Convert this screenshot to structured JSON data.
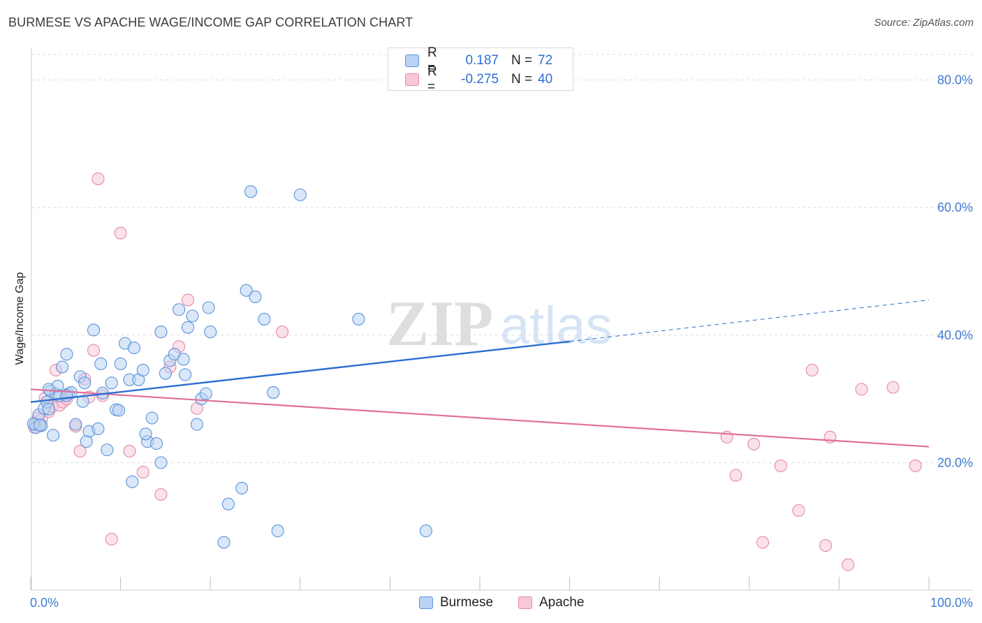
{
  "title": "BURMESE VS APACHE WAGE/INCOME GAP CORRELATION CHART",
  "source": "Source: ZipAtlas.com",
  "watermark": {
    "zip": "ZIP",
    "atlas": "atlas"
  },
  "colors": {
    "burmese_fill": "#b9d3f3",
    "burmese_stroke": "#5b93d8",
    "burmese_line": "#2a6fd0",
    "apache_fill": "#f8c8d8",
    "apache_stroke": "#e58aa9",
    "apache_line": "#e0709a",
    "tick_label": "#3f7bd3",
    "grid": "#dddddd"
  },
  "legend": {
    "rows": [
      {
        "r_label": "R =",
        "r_value": "0.187",
        "n_label": "N =",
        "n_value": "72"
      },
      {
        "r_label": "R =",
        "r_value": "-0.275",
        "n_label": "N =",
        "n_value": "40"
      }
    ]
  },
  "bottom_legend": {
    "burmese": "Burmese",
    "apache": "Apache"
  },
  "chart_data": {
    "type": "scatter",
    "title": "BURMESE VS APACHE WAGE/INCOME GAP CORRELATION CHART",
    "xlabel": "",
    "ylabel": "Wage/Income Gap",
    "xlim": [
      0,
      100
    ],
    "ylim": [
      0,
      84
    ],
    "x_tick_labels": [
      "0.0%",
      "100.0%"
    ],
    "y_ticks": [
      20,
      40,
      60,
      80
    ],
    "y_tick_labels": [
      "20.0%",
      "40.0%",
      "60.0%",
      "80.0%"
    ],
    "grid": "horizontal dashed",
    "legend_position": "top-center",
    "series": [
      {
        "name": "Burmese",
        "x": [
          0.5,
          0.6,
          0.9,
          1.2,
          1.5,
          1.8,
          2.0,
          2.2,
          2.5,
          2.8,
          3.0,
          3.2,
          3.5,
          4.0,
          4.2,
          4.5,
          5.0,
          5.5,
          5.8,
          6.0,
          6.5,
          7.0,
          7.5,
          8.0,
          8.5,
          9.0,
          9.5,
          10.0,
          10.5,
          11.0,
          11.5,
          12.0,
          12.5,
          13.0,
          13.5,
          14.0,
          14.5,
          15.0,
          15.5,
          16.0,
          16.5,
          17.0,
          17.5,
          18.0,
          18.5,
          19.0,
          19.5,
          20.0,
          21.5,
          22.0,
          23.5,
          24.0,
          25.0,
          26.0,
          27.5,
          30.0,
          0.3,
          1.0,
          2.0,
          4.0,
          6.2,
          7.8,
          9.8,
          11.3,
          12.8,
          14.5,
          17.2,
          19.8,
          24.5,
          27.0,
          36.5,
          44.0
        ],
        "y": [
          26.0,
          25.5,
          27.5,
          25.8,
          28.5,
          29.5,
          28.4,
          31.2,
          24.3,
          30.8,
          32.0,
          30.5,
          35.0,
          37.0,
          30.8,
          31.0,
          26.0,
          33.5,
          29.6,
          32.5,
          24.9,
          40.8,
          25.3,
          30.9,
          22.0,
          32.5,
          28.3,
          35.5,
          38.7,
          33.0,
          38.0,
          33.0,
          34.5,
          23.3,
          27.0,
          23.0,
          40.5,
          34.0,
          36.0,
          37.0,
          44.0,
          36.2,
          41.2,
          43.0,
          26.0,
          30.0,
          30.8,
          40.5,
          7.5,
          13.5,
          16.0,
          47.0,
          46.0,
          42.5,
          9.3,
          62.0,
          26.1,
          25.9,
          31.5,
          30.5,
          23.3,
          35.5,
          28.2,
          17.0,
          24.5,
          20.0,
          33.8,
          44.3,
          62.5,
          31.0,
          42.5,
          9.3
        ]
      },
      {
        "name": "Apache",
        "x": [
          0.4,
          0.8,
          1.2,
          1.6,
          2.0,
          2.4,
          2.8,
          3.2,
          3.6,
          4.0,
          5.0,
          5.5,
          6.0,
          6.5,
          7.0,
          7.5,
          8.0,
          9.0,
          10.0,
          11.0,
          12.5,
          14.5,
          15.5,
          16.5,
          17.5,
          18.5,
          28.0,
          77.5,
          78.5,
          80.5,
          81.5,
          83.5,
          85.5,
          87.0,
          88.5,
          89.0,
          91.0,
          92.5,
          96.0,
          98.5
        ],
        "y": [
          25.5,
          27.0,
          26.8,
          30.1,
          28.0,
          28.8,
          34.5,
          29.0,
          29.5,
          30.0,
          25.7,
          21.8,
          33.1,
          30.3,
          37.6,
          64.5,
          30.5,
          8.0,
          56.0,
          21.8,
          18.5,
          15.0,
          35.0,
          38.2,
          45.5,
          28.5,
          40.5,
          24.0,
          18.0,
          22.9,
          7.5,
          19.5,
          12.5,
          34.5,
          7.0,
          24.0,
          4.0,
          31.5,
          31.8,
          19.5
        ]
      }
    ],
    "trend_lines": [
      {
        "name": "Burmese",
        "x": [
          0,
          60
        ],
        "y": [
          29.5,
          39.0
        ],
        "dashed_extension": {
          "x": [
            60,
            100
          ],
          "y": [
            39.0,
            45.5
          ]
        }
      },
      {
        "name": "Apache",
        "x": [
          0,
          100
        ],
        "y": [
          31.5,
          22.5
        ]
      }
    ]
  }
}
